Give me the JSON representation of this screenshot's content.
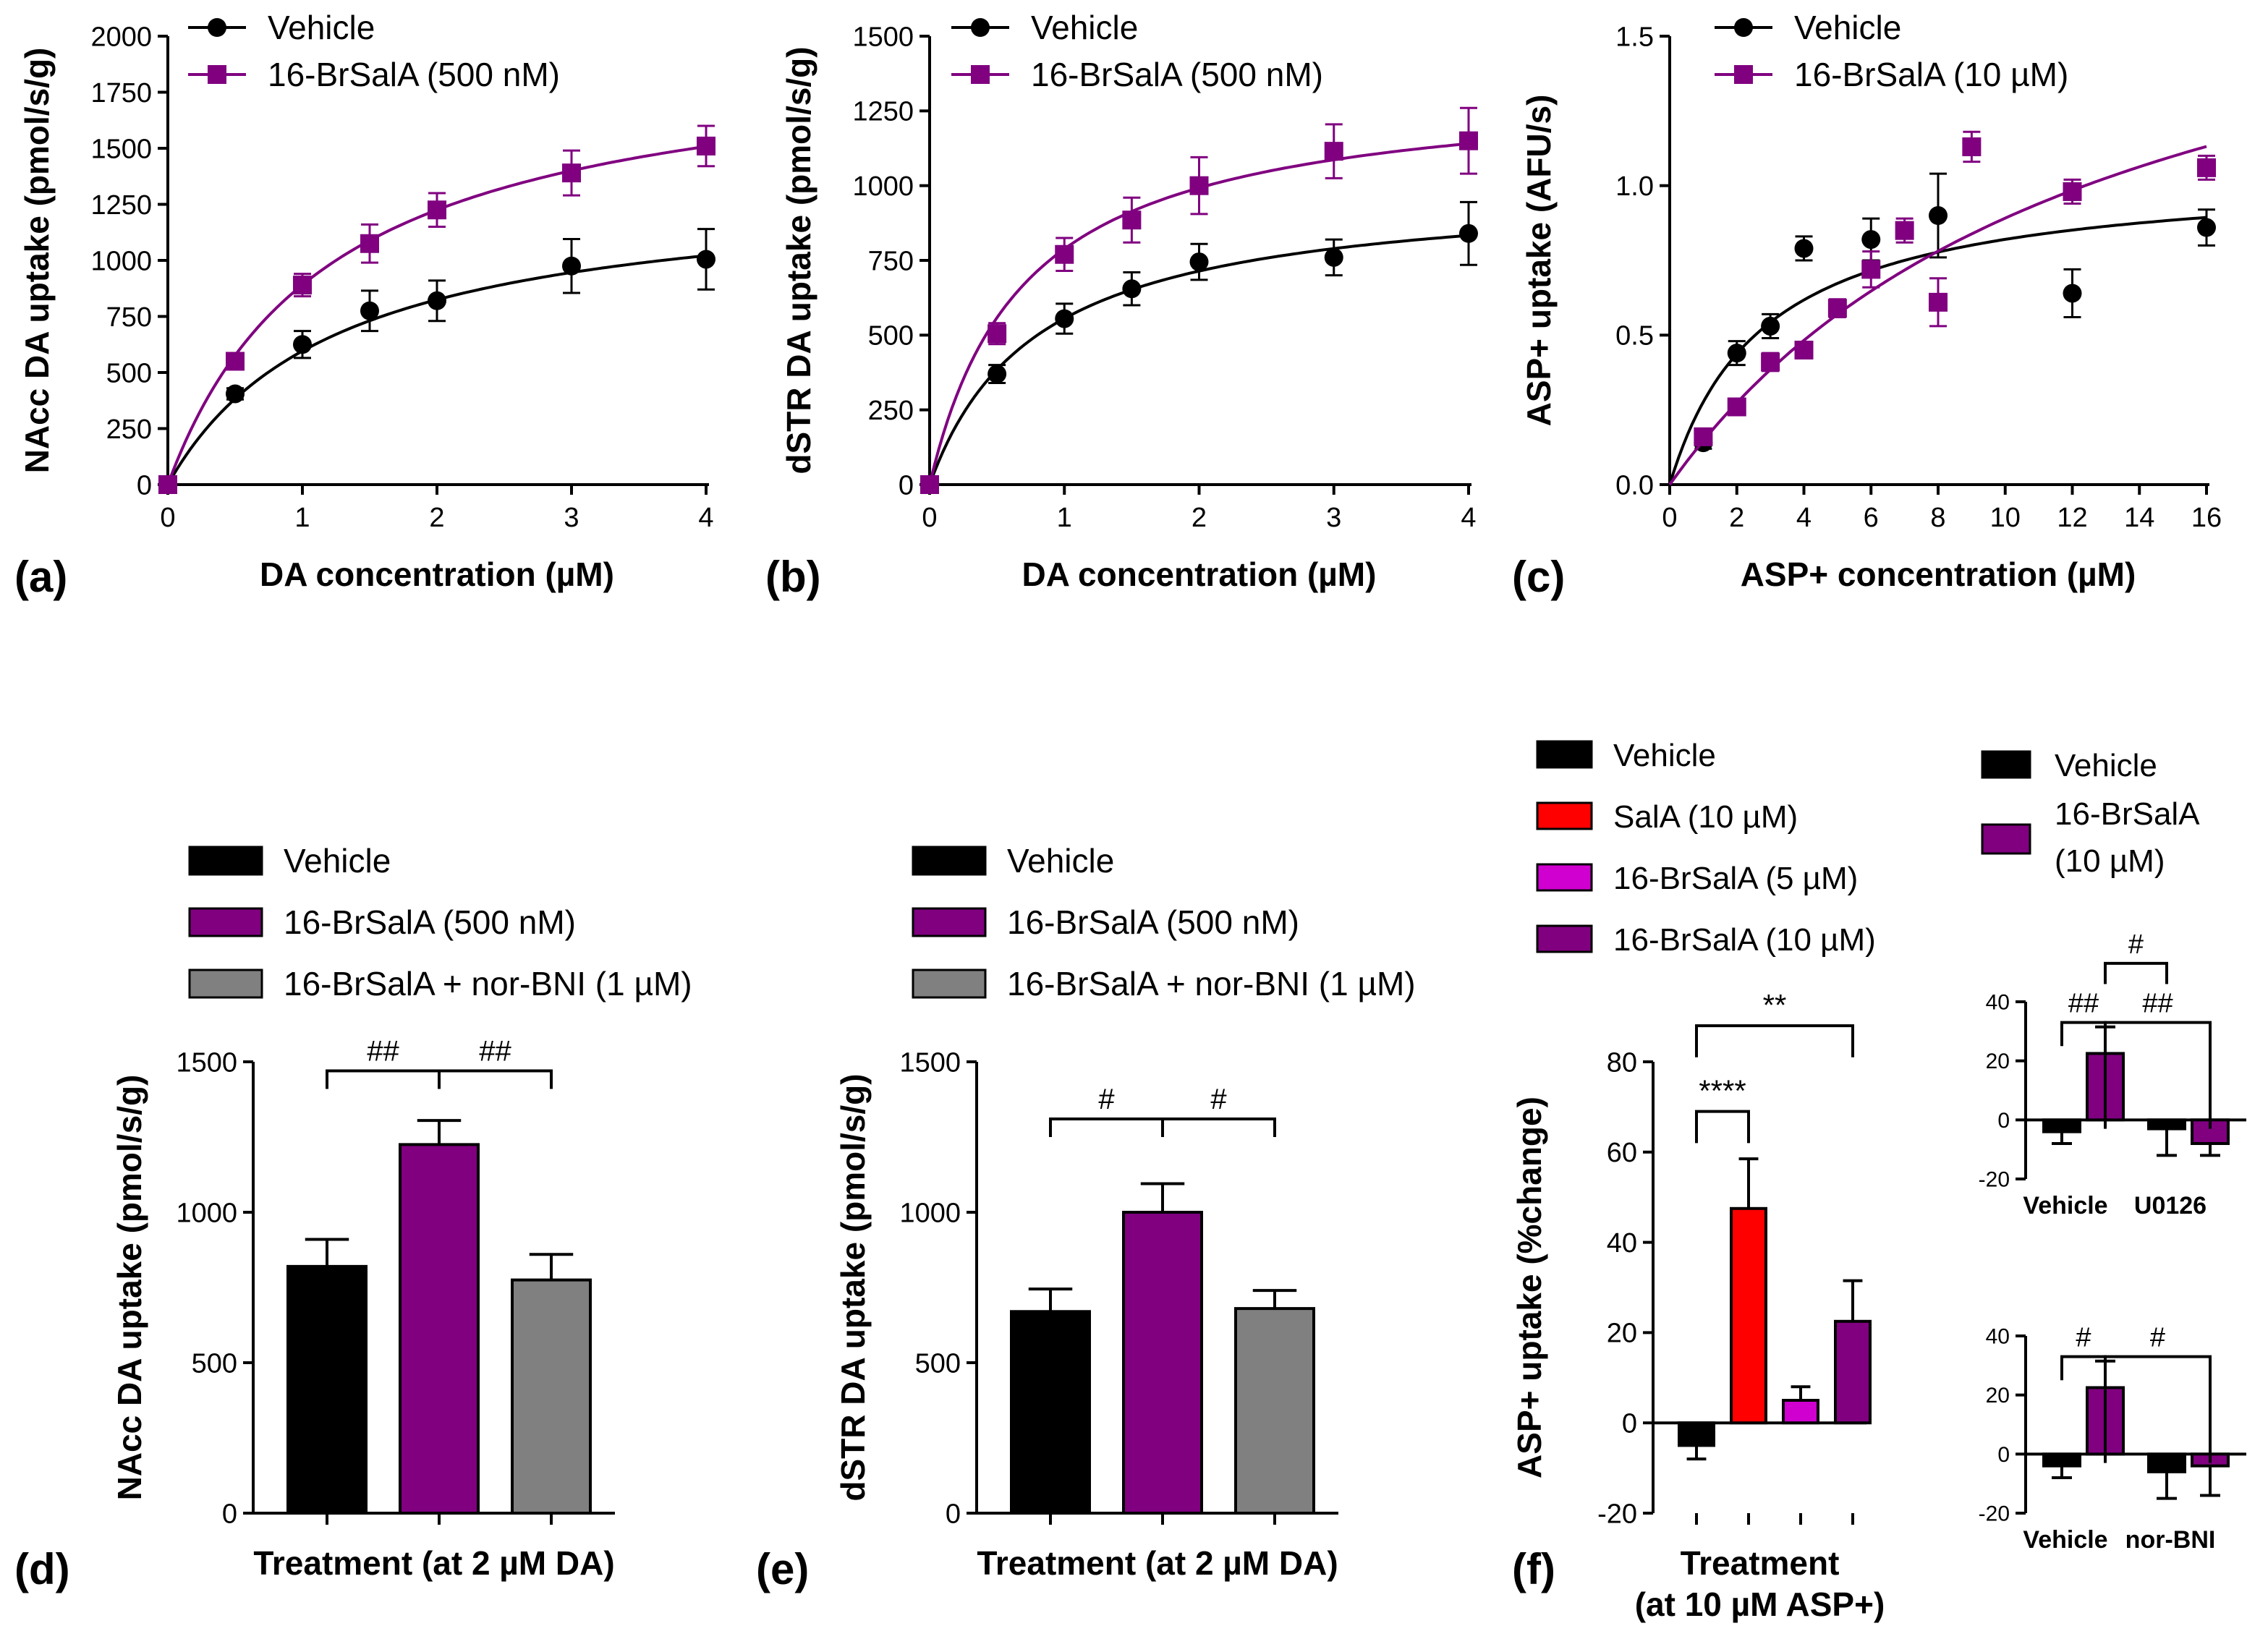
{
  "colors": {
    "vehicle": "#000000",
    "brsala": "#800080",
    "norbni": "#808080",
    "sala": "#ff0000",
    "brsala5": "#d000d0"
  },
  "chart_data": [
    {
      "id": "a",
      "panel_label": "(a)",
      "type": "scatter",
      "xlabel": "DA concentration (µM)",
      "ylabel": "NAcc DA uptake (pmol/s/g)",
      "xlim": [
        0,
        4
      ],
      "ylim": [
        0,
        2000
      ],
      "xticks": [
        0,
        1,
        2,
        3,
        4
      ],
      "yticks": [
        0,
        250,
        500,
        750,
        1000,
        1250,
        1500,
        1750,
        2000
      ],
      "series": [
        {
          "name": "Vehicle",
          "marker": "circle",
          "color_key": "vehicle",
          "x": [
            0,
            0.5,
            1,
            1.5,
            2,
            3,
            4
          ],
          "y": [
            0,
            405,
            625,
            775,
            820,
            975,
            1005
          ],
          "err": [
            0,
            25,
            60,
            90,
            90,
            120,
            135
          ],
          "fit": {
            "vmax": 1340,
            "km": 1.25
          }
        },
        {
          "name": "16-BrSalA (500 nM)",
          "marker": "square",
          "color_key": "brsala",
          "x": [
            0,
            0.5,
            1,
            1.5,
            2,
            3,
            4
          ],
          "y": [
            0,
            550,
            890,
            1075,
            1225,
            1390,
            1510
          ],
          "err": [
            0,
            25,
            50,
            85,
            75,
            100,
            90
          ],
          "fit": {
            "vmax": 1960,
            "km": 1.2
          }
        }
      ]
    },
    {
      "id": "b",
      "panel_label": "(b)",
      "type": "scatter",
      "xlabel": "DA concentration (µM)",
      "ylabel": "dSTR DA uptake (pmol/s/g)",
      "xlim": [
        0,
        4
      ],
      "ylim": [
        0,
        1500
      ],
      "xticks": [
        0,
        1,
        2,
        3,
        4
      ],
      "yticks": [
        0,
        250,
        500,
        750,
        1000,
        1250,
        1500
      ],
      "series": [
        {
          "name": "Vehicle",
          "marker": "circle",
          "color_key": "vehicle",
          "x": [
            0,
            0.5,
            1,
            1.5,
            2,
            3,
            4
          ],
          "y": [
            0,
            370,
            555,
            655,
            745,
            760,
            840
          ],
          "err": [
            0,
            30,
            50,
            55,
            60,
            60,
            105
          ],
          "fit": {
            "vmax": 1000,
            "km": 0.8
          }
        },
        {
          "name": "16-BrSalA (500 nM)",
          "marker": "square",
          "color_key": "brsala",
          "x": [
            0,
            0.5,
            1,
            1.5,
            2,
            3,
            4
          ],
          "y": [
            0,
            505,
            770,
            885,
            1000,
            1115,
            1150
          ],
          "err": [
            0,
            35,
            55,
            75,
            95,
            90,
            110
          ],
          "fit": {
            "vmax": 1340,
            "km": 0.7
          }
        }
      ]
    },
    {
      "id": "c",
      "panel_label": "(c)",
      "type": "scatter",
      "xlabel": "ASP+ concentration (µM)",
      "ylabel": "ASP+ uptake  (AFU/s)",
      "xlim": [
        0,
        16
      ],
      "ylim": [
        0,
        1.5
      ],
      "xticks": [
        0,
        2,
        4,
        6,
        8,
        10,
        12,
        14,
        16
      ],
      "yticks": [
        0.0,
        0.5,
        1.0,
        1.5
      ],
      "ytick_labels": [
        "0.0",
        "0.5",
        "1.0",
        "1.5"
      ],
      "series": [
        {
          "name": "Vehicle",
          "marker": "circle",
          "color_key": "vehicle",
          "x": [
            1,
            2,
            3,
            4,
            6,
            8,
            12,
            16
          ],
          "y": [
            0.14,
            0.44,
            0.53,
            0.79,
            0.82,
            0.9,
            0.64,
            0.86
          ],
          "err": [
            0.02,
            0.04,
            0.04,
            0.04,
            0.07,
            0.14,
            0.08,
            0.06
          ],
          "fit": {
            "vmax": 1.05,
            "km": 2.8
          }
        },
        {
          "name": "16-BrSalA (10 µM)",
          "marker": "square",
          "color_key": "brsala",
          "x": [
            1,
            2,
            3,
            4,
            5,
            6,
            7,
            8,
            9,
            12,
            16
          ],
          "y": [
            0.16,
            0.26,
            0.41,
            0.45,
            0.59,
            0.72,
            0.85,
            0.61,
            1.13,
            0.98,
            1.06
          ],
          "err": [
            0.02,
            0.02,
            0.03,
            0.02,
            0.03,
            0.06,
            0.04,
            0.08,
            0.05,
            0.04,
            0.04
          ],
          "fit": {
            "vmax": 2.05,
            "km": 13.0
          }
        }
      ]
    },
    {
      "id": "d",
      "panel_label": "(d)",
      "type": "bar",
      "xlabel": "Treatment (at 2 µM DA)",
      "ylabel": "NAcc DA uptake (pmol/s/g)",
      "ylim": [
        0,
        1500
      ],
      "yticks": [
        0,
        500,
        1000,
        1500
      ],
      "legend": [
        {
          "label": "Vehicle",
          "color_key": "vehicle"
        },
        {
          "label": "16-BrSalA (500 nM)",
          "color_key": "brsala"
        },
        {
          "label": "16-BrSalA + nor-BNI (1 µM)",
          "color_key": "norbni"
        }
      ],
      "bars": [
        {
          "label": "Vehicle",
          "value": 820,
          "err": 90,
          "color_key": "vehicle"
        },
        {
          "label": "16-BrSalA (500 nM)",
          "value": 1225,
          "err": 80,
          "color_key": "brsala"
        },
        {
          "label": "16-BrSalA + nor-BNI (1 µM)",
          "value": 775,
          "err": 85,
          "color_key": "norbni"
        }
      ],
      "annotations": [
        {
          "from": 0,
          "to": 1,
          "text": "##",
          "level": 1470,
          "drop": 60
        },
        {
          "from": 1,
          "to": 2,
          "text": "##",
          "level": 1470,
          "drop": 60
        }
      ]
    },
    {
      "id": "e",
      "panel_label": "(e)",
      "type": "bar",
      "xlabel": "Treatment (at 2 µM DA)",
      "ylabel": "dSTR DA uptake (pmol/s/g)",
      "ylim": [
        0,
        1500
      ],
      "yticks": [
        0,
        500,
        1000,
        1500
      ],
      "legend": [
        {
          "label": "Vehicle",
          "color_key": "vehicle"
        },
        {
          "label": "16-BrSalA (500 nM)",
          "color_key": "brsala"
        },
        {
          "label": "16-BrSalA + nor-BNI (1 µM)",
          "color_key": "norbni"
        }
      ],
      "bars": [
        {
          "label": "Vehicle",
          "value": 670,
          "err": 75,
          "color_key": "vehicle"
        },
        {
          "label": "16-BrSalA (500 nM)",
          "value": 1000,
          "err": 95,
          "color_key": "brsala"
        },
        {
          "label": "16-BrSalA + nor-BNI (1 µM)",
          "value": 680,
          "err": 60,
          "color_key": "norbni"
        }
      ],
      "annotations": [
        {
          "from": 0,
          "to": 1,
          "text": "#",
          "level": 1310,
          "drop": 60
        },
        {
          "from": 1,
          "to": 2,
          "text": "#",
          "level": 1310,
          "drop": 60
        }
      ]
    },
    {
      "id": "f",
      "panel_label": "(f)",
      "type": "bar",
      "xlabel": "Treatment",
      "xlabel2": "(at 10 µM ASP+)",
      "ylabel": "ASP+ uptake (%change)",
      "ylim": [
        -20,
        80
      ],
      "yticks": [
        -20,
        0,
        20,
        40,
        60,
        80
      ],
      "legend": [
        {
          "label": "Vehicle",
          "color_key": "vehicle"
        },
        {
          "label": "SalA (10 µM)",
          "color_key": "sala"
        },
        {
          "label": "16-BrSalA (5 µM)",
          "color_key": "brsala5"
        },
        {
          "label": "16-BrSalA (10 µM)",
          "color_key": "brsala"
        }
      ],
      "bars": [
        {
          "label": "Vehicle",
          "value": -5,
          "err": 3,
          "color_key": "vehicle"
        },
        {
          "label": "SalA (10 µM)",
          "value": 47.5,
          "err": 11,
          "color_key": "sala"
        },
        {
          "label": "16-BrSalA (5 µM)",
          "value": 5,
          "err": 3,
          "color_key": "brsala5"
        },
        {
          "label": "16-BrSalA (10 µM)",
          "value": 22.5,
          "err": 9,
          "color_key": "brsala"
        }
      ],
      "annotations": [
        {
          "from": 0,
          "to": 1,
          "text": "****",
          "level": 69,
          "drop": 7
        },
        {
          "from": 0,
          "to": 3,
          "text": "**",
          "level": 88,
          "drop": 7
        }
      ]
    },
    {
      "id": "f_inset_u0126",
      "type": "bar",
      "ylim": [
        -20,
        40
      ],
      "yticks": [
        -20,
        0,
        20,
        40
      ],
      "legend": [
        {
          "label": "Vehicle",
          "color_key": "vehicle"
        },
        {
          "label": "16-BrSalA",
          "label2": "(10 µM)",
          "color_key": "brsala"
        }
      ],
      "groups": [
        "Vehicle",
        "U0126"
      ],
      "bars": [
        {
          "label": "Vehicle / Vehicle",
          "value": -4,
          "err": 4,
          "color_key": "vehicle"
        },
        {
          "label": "Vehicle / 16-BrSalA (10 µM)",
          "value": 22.5,
          "err": 9,
          "color_key": "brsala"
        },
        {
          "label": "U0126 / Vehicle",
          "value": -3,
          "err": 9,
          "color_key": "vehicle"
        },
        {
          "label": "U0126 / 16-BrSalA (10 µM)",
          "value": -8,
          "err": 4,
          "color_key": "brsala"
        }
      ],
      "annotations": [
        {
          "from": 0,
          "to": 1,
          "text": "##",
          "level": 33,
          "drop": 8
        },
        {
          "from": 1,
          "to": 3,
          "text": "##",
          "level": 33,
          "drop": 36
        },
        {
          "from": 1,
          "to": 2,
          "text": "#",
          "level": 53,
          "drop": 7
        }
      ]
    },
    {
      "id": "f_inset_norbni",
      "type": "bar",
      "ylim": [
        -20,
        40
      ],
      "yticks": [
        -20,
        0,
        20,
        40
      ],
      "groups": [
        "Vehicle",
        "nor-BNI"
      ],
      "bars": [
        {
          "label": "Vehicle / Vehicle",
          "value": -4,
          "err": 4,
          "color_key": "vehicle"
        },
        {
          "label": "Vehicle / 16-BrSalA (10 µM)",
          "value": 22.5,
          "err": 9,
          "color_key": "brsala"
        },
        {
          "label": "nor-BNI / Vehicle",
          "value": -6,
          "err": 9,
          "color_key": "vehicle"
        },
        {
          "label": "nor-BNI / 16-BrSalA (10 µM)",
          "value": -4,
          "err": 10,
          "color_key": "brsala"
        }
      ],
      "annotations": [
        {
          "from": 0,
          "to": 1,
          "text": "#",
          "level": 33,
          "drop": 8
        },
        {
          "from": 1,
          "to": 3,
          "text": "#",
          "level": 33,
          "drop": 36
        }
      ]
    }
  ]
}
